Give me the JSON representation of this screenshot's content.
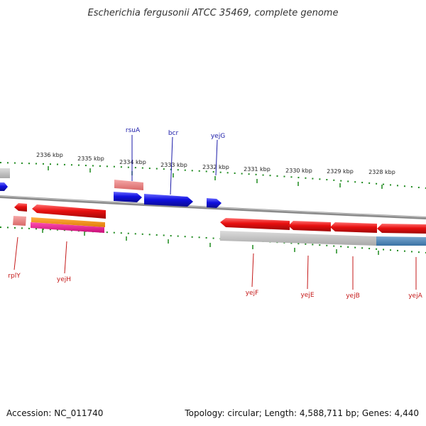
{
  "title": "Escherichia fergusonii ATCC 35469, complete genome",
  "footer": {
    "accession": "Accession: NC_011740",
    "summary": "Topology: circular; Length: 4,588,711 bp; Genes: 4,440"
  },
  "scale_labels": [
    "2336 kbp",
    "2335 kbp",
    "2334 kbp",
    "2333 kbp",
    "2332 kbp",
    "2331 kbp",
    "2330 kbp",
    "2329 kbp",
    "2328 kbp"
  ],
  "top_genes": [
    "rsuA",
    "bcr",
    "yejG"
  ],
  "bottom_genes": [
    "rplY",
    "yejH",
    "yejF",
    "yejE",
    "yejB",
    "yejA"
  ],
  "colors": {
    "forward": "#1010e0",
    "reverse": "#e01010",
    "pseudo": "#e87878",
    "orange": "#f08c10",
    "magenta": "#e81890",
    "grey": "#b8b8b8",
    "steel": "#4a86b8",
    "tick": "#1e8a1e",
    "backbone": "#8a8a8a"
  }
}
